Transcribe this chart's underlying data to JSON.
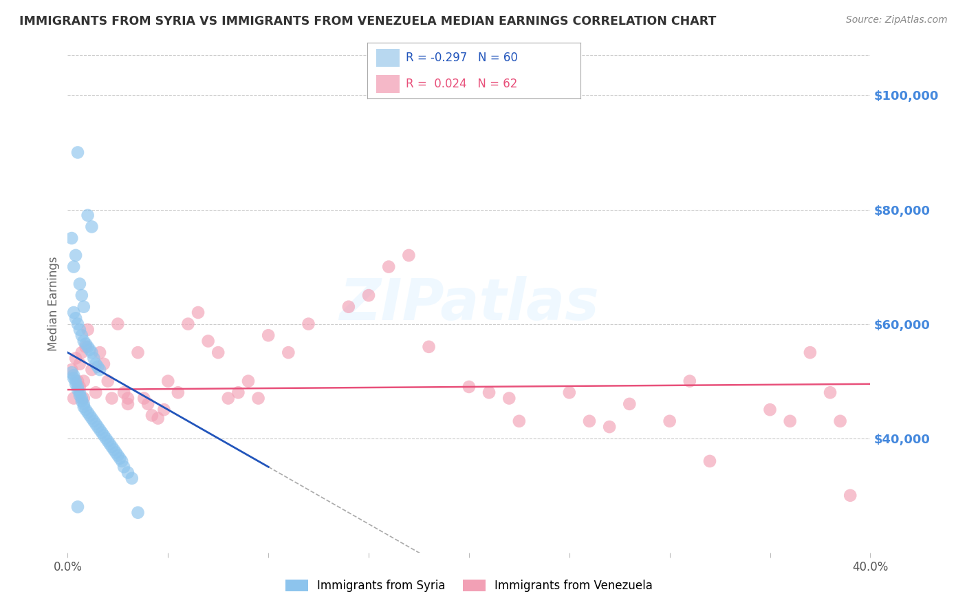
{
  "title": "IMMIGRANTS FROM SYRIA VS IMMIGRANTS FROM VENEZUELA MEDIAN EARNINGS CORRELATION CHART",
  "source": "Source: ZipAtlas.com",
  "ylabel": "Median Earnings",
  "watermark": "ZIPatlas",
  "xlim": [
    0.0,
    0.4
  ],
  "ylim": [
    20000,
    107000
  ],
  "xtick_positions": [
    0.0,
    0.05,
    0.1,
    0.15,
    0.2,
    0.25,
    0.3,
    0.35,
    0.4
  ],
  "xtick_labels": [
    "0.0%",
    "",
    "",
    "",
    "",
    "",
    "",
    "",
    "40.0%"
  ],
  "yticks_right": [
    40000,
    60000,
    80000,
    100000
  ],
  "ytick_labels_right": [
    "$40,000",
    "$60,000",
    "$80,000",
    "$100,000"
  ],
  "syria_R": -0.297,
  "syria_N": 60,
  "venezuela_R": 0.024,
  "venezuela_N": 62,
  "syria_color": "#8DC4ED",
  "venezuela_color": "#F2A0B5",
  "syria_line_color": "#2255BB",
  "venezuela_line_color": "#E8507A",
  "syria_line_solid_end": 0.1,
  "background_color": "#FFFFFF",
  "grid_color": "#CCCCCC",
  "title_color": "#333333",
  "right_label_color": "#4488DD",
  "source_color": "#888888",
  "legend_syria_fill": "#B8D8F0",
  "legend_venezuela_fill": "#F5B8C8",
  "legend_border_color": "#AAAAAA",
  "syria_x": [
    0.005,
    0.01,
    0.012,
    0.002,
    0.004,
    0.003,
    0.006,
    0.007,
    0.008,
    0.003,
    0.004,
    0.005,
    0.006,
    0.007,
    0.008,
    0.009,
    0.01,
    0.011,
    0.012,
    0.013,
    0.014,
    0.015,
    0.016,
    0.002,
    0.003,
    0.003,
    0.004,
    0.004,
    0.005,
    0.005,
    0.006,
    0.006,
    0.007,
    0.007,
    0.008,
    0.008,
    0.009,
    0.01,
    0.011,
    0.012,
    0.013,
    0.014,
    0.015,
    0.016,
    0.017,
    0.018,
    0.019,
    0.02,
    0.021,
    0.022,
    0.023,
    0.024,
    0.025,
    0.026,
    0.027,
    0.028,
    0.03,
    0.032,
    0.005,
    0.035
  ],
  "syria_y": [
    90000,
    79000,
    77000,
    75000,
    72000,
    70000,
    67000,
    65000,
    63000,
    62000,
    61000,
    60000,
    59000,
    58000,
    57000,
    56500,
    56000,
    55500,
    55000,
    54000,
    53000,
    52500,
    52000,
    51500,
    51000,
    50500,
    50000,
    49500,
    49000,
    48500,
    48000,
    47500,
    47000,
    46500,
    46000,
    45500,
    45000,
    44500,
    44000,
    43500,
    43000,
    42500,
    42000,
    41500,
    41000,
    40500,
    40000,
    39500,
    39000,
    38500,
    38000,
    37500,
    37000,
    36500,
    36000,
    35000,
    34000,
    33000,
    28000,
    27000
  ],
  "venezuela_x": [
    0.002,
    0.004,
    0.005,
    0.006,
    0.007,
    0.008,
    0.009,
    0.01,
    0.012,
    0.014,
    0.016,
    0.018,
    0.02,
    0.022,
    0.025,
    0.028,
    0.03,
    0.03,
    0.035,
    0.038,
    0.04,
    0.042,
    0.045,
    0.048,
    0.05,
    0.055,
    0.06,
    0.065,
    0.07,
    0.075,
    0.08,
    0.085,
    0.09,
    0.095,
    0.1,
    0.11,
    0.12,
    0.14,
    0.15,
    0.16,
    0.17,
    0.18,
    0.2,
    0.21,
    0.22,
    0.225,
    0.25,
    0.26,
    0.27,
    0.28,
    0.3,
    0.31,
    0.32,
    0.35,
    0.36,
    0.37,
    0.38,
    0.385,
    0.39,
    0.003,
    0.006,
    0.008
  ],
  "venezuela_y": [
    52000,
    54000,
    50000,
    49000,
    55000,
    47000,
    56000,
    59000,
    52000,
    48000,
    55000,
    53000,
    50000,
    47000,
    60000,
    48000,
    46000,
    47000,
    55000,
    47000,
    46000,
    44000,
    43500,
    45000,
    50000,
    48000,
    60000,
    62000,
    57000,
    55000,
    47000,
    48000,
    50000,
    47000,
    58000,
    55000,
    60000,
    63000,
    65000,
    70000,
    72000,
    56000,
    49000,
    48000,
    47000,
    43000,
    48000,
    43000,
    42000,
    46000,
    43000,
    50000,
    36000,
    45000,
    43000,
    55000,
    48000,
    43000,
    30000,
    47000,
    53000,
    50000
  ]
}
